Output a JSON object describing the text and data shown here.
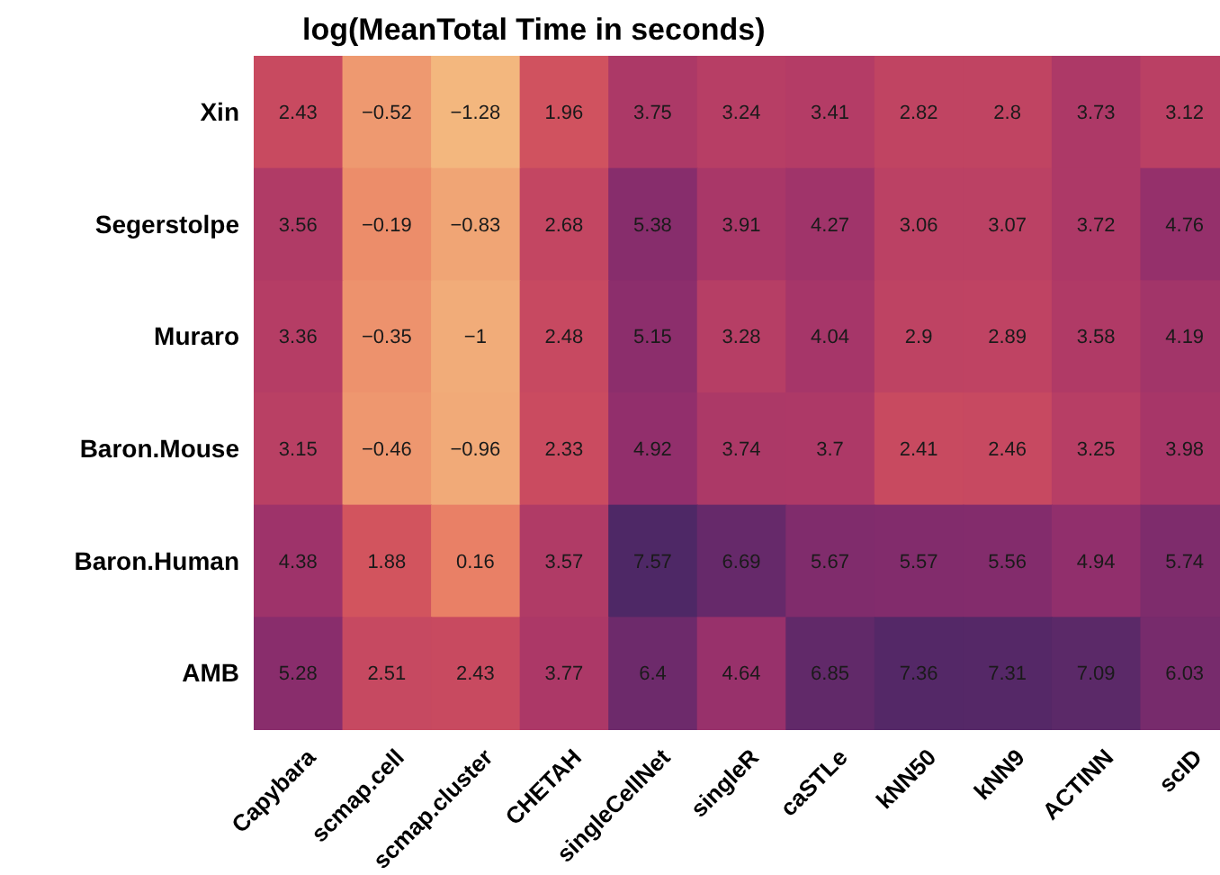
{
  "chart_data": {
    "type": "heatmap",
    "title": "log(MeanTotal Time in seconds)",
    "categories": [
      "Capybara",
      "scmap.cell",
      "scmap.cluster",
      "CHETAH",
      "singleCellNet",
      "singleR",
      "caSTLe",
      "kNN50",
      "kNN9",
      "ACTINN",
      "scID"
    ],
    "y_categories": [
      "Xin",
      "Segerstolpe",
      "Muraro",
      "Baron.Mouse",
      "Baron.Human",
      "AMB"
    ],
    "cells": [
      [
        2.43,
        -0.52,
        -1.28,
        1.96,
        3.75,
        3.24,
        3.41,
        2.82,
        2.8,
        3.73,
        3.12
      ],
      [
        3.56,
        -0.19,
        -0.83,
        2.68,
        5.38,
        3.91,
        4.27,
        3.06,
        3.07,
        3.72,
        4.76
      ],
      [
        3.36,
        -0.35,
        -1,
        2.48,
        5.15,
        3.28,
        4.04,
        2.9,
        2.89,
        3.58,
        4.19
      ],
      [
        3.15,
        -0.46,
        -0.96,
        2.33,
        4.92,
        3.74,
        3.7,
        2.41,
        2.46,
        3.25,
        3.98
      ],
      [
        4.38,
        1.88,
        0.16,
        3.57,
        7.57,
        6.69,
        5.67,
        5.57,
        5.56,
        4.94,
        5.74
      ],
      [
        5.28,
        2.51,
        2.43,
        3.77,
        6.4,
        4.64,
        6.85,
        7.36,
        7.31,
        7.09,
        6.03
      ]
    ],
    "data_labels": true
  }
}
